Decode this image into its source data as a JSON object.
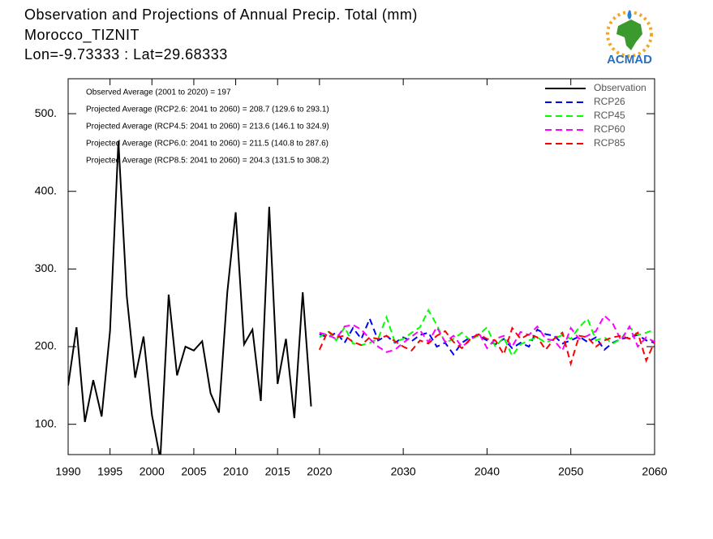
{
  "chart_data": {
    "type": "line",
    "title": "Observation and Projections of Annual Precip. Total (mm)",
    "subtitle": [
      "Morocco_TIZNIT",
      "Lon=-9.73333 : Lat=29.68333"
    ],
    "annotations": [
      "Observed Average (2001 to 2020) = 197",
      "Projected Average (RCP2.6: 2041 to 2060) = 208.7 (129.6 to 293.1)",
      "Projected Average (RCP4.5: 2041 to 2060) = 213.6 (146.1 to 324.9)",
      "Projected Average (RCP6.0: 2041 to 2060) = 211.5 (140.8 to 287.6)",
      "Projected Average (RCP8.5: 2041 to 2060) = 204.3 (131.5 to 308.2)"
    ],
    "legend": "upper right",
    "xlim": [
      1990,
      2060
    ],
    "xticks": [
      1990,
      1995,
      2000,
      2005,
      2010,
      2015,
      2020,
      2030,
      2040,
      2050,
      2060
    ],
    "ylim": [
      61,
      545
    ],
    "yticks": [
      {
        "value": 100,
        "label": "100."
      },
      {
        "value": 200,
        "label": "200."
      },
      {
        "value": 300,
        "label": "300."
      },
      {
        "value": 400,
        "label": "400."
      },
      {
        "value": 500,
        "label": "500."
      }
    ],
    "series": [
      {
        "name": "Observation",
        "color": "#000000",
        "dashed": false,
        "x": [
          1990,
          1991,
          1992,
          1993,
          1994,
          1995,
          1996,
          1997,
          1998,
          1999,
          2000,
          2001,
          2002,
          2003,
          2004,
          2005,
          2006,
          2007,
          2008,
          2009,
          2010,
          2011,
          2012,
          2013,
          2014,
          2015,
          2016,
          2017,
          2018,
          2019
        ],
        "values": [
          150,
          225,
          103,
          157,
          110,
          220,
          465,
          265,
          160,
          213,
          112,
          55,
          267,
          163,
          200,
          195,
          207,
          140,
          115,
          270,
          373,
          203,
          222,
          130,
          380,
          152,
          210,
          108,
          270,
          123
        ]
      },
      {
        "name": "RCP26",
        "color": "#0000ff",
        "dashed": true,
        "x": [
          2020,
          2021,
          2022,
          2023,
          2024,
          2025,
          2026,
          2027,
          2028,
          2029,
          2030,
          2031,
          2032,
          2033,
          2034,
          2035,
          2036,
          2037,
          2038,
          2039,
          2040,
          2041,
          2042,
          2043,
          2044,
          2045,
          2046,
          2047,
          2048,
          2049,
          2050,
          2051,
          2052,
          2053,
          2054,
          2055,
          2056,
          2057,
          2058,
          2059,
          2060
        ],
        "values": [
          216,
          212,
          218,
          205,
          224,
          210,
          236,
          208,
          214,
          205,
          212,
          207,
          215,
          218,
          200,
          205,
          190,
          205,
          212,
          214,
          208,
          203,
          210,
          198,
          205,
          200,
          222,
          216,
          214,
          204,
          208,
          213,
          206,
          212,
          196,
          205,
          210,
          212,
          215,
          208,
          205
        ]
      },
      {
        "name": "RCP45",
        "color": "#00ff00",
        "dashed": true,
        "x": [
          2020,
          2021,
          2022,
          2023,
          2024,
          2025,
          2026,
          2027,
          2028,
          2029,
          2030,
          2031,
          2032,
          2033,
          2034,
          2035,
          2036,
          2037,
          2038,
          2039,
          2040,
          2041,
          2042,
          2043,
          2044,
          2045,
          2046,
          2047,
          2048,
          2049,
          2050,
          2051,
          2052,
          2053,
          2054,
          2055,
          2056,
          2057,
          2058,
          2059,
          2060
        ],
        "values": [
          212,
          220,
          208,
          225,
          204,
          202,
          205,
          210,
          238,
          206,
          210,
          218,
          225,
          247,
          228,
          205,
          210,
          218,
          208,
          215,
          225,
          200,
          212,
          188,
          203,
          208,
          212,
          205,
          210,
          215,
          210,
          225,
          236,
          208,
          212,
          204,
          210,
          225,
          215,
          218,
          222
        ]
      },
      {
        "name": "RCP60",
        "color": "#ff00ff",
        "dashed": true,
        "x": [
          2020,
          2021,
          2022,
          2023,
          2024,
          2025,
          2026,
          2027,
          2028,
          2029,
          2030,
          2031,
          2032,
          2033,
          2034,
          2035,
          2036,
          2037,
          2038,
          2039,
          2040,
          2041,
          2042,
          2043,
          2044,
          2045,
          2046,
          2047,
          2048,
          2049,
          2050,
          2051,
          2052,
          2053,
          2054,
          2055,
          2056,
          2057,
          2058,
          2059,
          2060
        ],
        "values": [
          218,
          215,
          210,
          226,
          228,
          222,
          210,
          200,
          193,
          196,
          205,
          213,
          221,
          206,
          225,
          206,
          214,
          200,
          208,
          218,
          198,
          210,
          214,
          200,
          219,
          215,
          226,
          210,
          208,
          195,
          224,
          210,
          214,
          220,
          240,
          230,
          208,
          226,
          200,
          212,
          206
        ]
      },
      {
        "name": "RCP85",
        "color": "#ff0000",
        "dashed": true,
        "x": [
          2020,
          2021,
          2022,
          2023,
          2024,
          2025,
          2026,
          2027,
          2028,
          2029,
          2030,
          2031,
          2032,
          2033,
          2034,
          2035,
          2036,
          2037,
          2038,
          2039,
          2040,
          2041,
          2042,
          2043,
          2044,
          2045,
          2046,
          2047,
          2048,
          2049,
          2050,
          2051,
          2052,
          2053,
          2054,
          2055,
          2056,
          2057,
          2058,
          2059,
          2060
        ],
        "values": [
          196,
          220,
          212,
          214,
          206,
          202,
          212,
          210,
          214,
          207,
          200,
          195,
          208,
          204,
          214,
          220,
          206,
          198,
          210,
          216,
          210,
          208,
          190,
          224,
          210,
          216,
          212,
          196,
          210,
          218,
          178,
          214,
          212,
          200,
          208,
          212,
          214,
          210,
          218,
          182,
          206
        ]
      }
    ]
  },
  "logo_text": "ACMAD"
}
